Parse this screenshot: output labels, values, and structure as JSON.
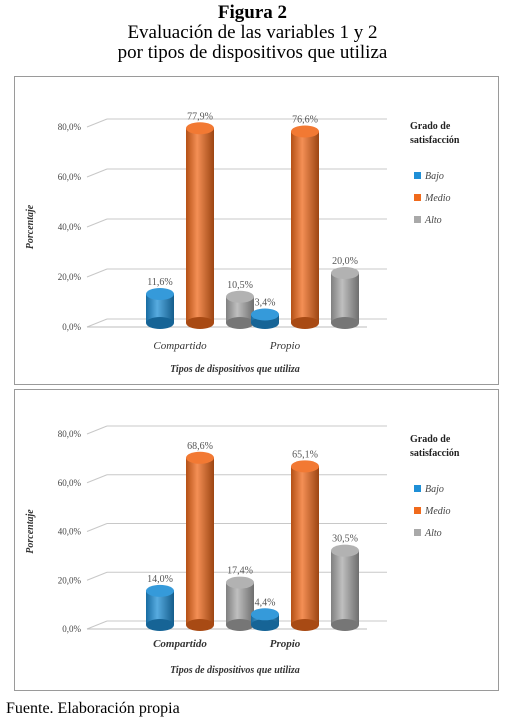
{
  "figure": {
    "title": "Figura 2",
    "subtitle_line1": "Evaluación de las variables 1 y 2",
    "subtitle_line2": "por tipos de dispositivos que utiliza"
  },
  "footer": "Fuente. Elaboración propia",
  "chart_data": [
    {
      "type": "bar",
      "categories": [
        "Compartido",
        "Propio"
      ],
      "series": [
        {
          "name": "Bajo",
          "color": "#1f8fd6",
          "values": [
            11.6,
            3.4
          ],
          "labels": [
            "11,6%",
            "3,4%"
          ]
        },
        {
          "name": "Medio",
          "color": "#f06a1c",
          "values": [
            77.9,
            76.6
          ],
          "labels": [
            "77,9%",
            "76,6%"
          ]
        },
        {
          "name": "Alto",
          "color": "#a9a9a9",
          "values": [
            10.5,
            20.0
          ],
          "labels": [
            "10,5%",
            "20,0%"
          ]
        }
      ],
      "ylim": [
        0,
        80
      ],
      "yticks": [
        0,
        20,
        40,
        60,
        80
      ],
      "ytick_labels": [
        "0,0%",
        "20,0%",
        "40,0%",
        "60,0%",
        "80,0%"
      ],
      "xlabel": "Tipos de dispositivos que utiliza",
      "ylabel": "Porcentaje",
      "legend_title": [
        "Grado de",
        "satisfacción"
      ],
      "legend_position": "right",
      "category_style": "italic",
      "grid": true
    },
    {
      "type": "bar",
      "categories": [
        "Compartido",
        "Propio"
      ],
      "series": [
        {
          "name": "Bajo",
          "color": "#1f8fd6",
          "values": [
            14.0,
            4.4
          ],
          "labels": [
            "14,0%",
            "4,4%"
          ]
        },
        {
          "name": "Medio",
          "color": "#f06a1c",
          "values": [
            68.6,
            65.1
          ],
          "labels": [
            "68,6%",
            "65,1%"
          ]
        },
        {
          "name": "Alto",
          "color": "#a9a9a9",
          "values": [
            17.4,
            30.5
          ],
          "labels": [
            "17,4%",
            "30,5%"
          ]
        }
      ],
      "ylim": [
        0,
        80
      ],
      "yticks": [
        0,
        20,
        40,
        60,
        80
      ],
      "ytick_labels": [
        "0,0%",
        "20,0%",
        "40,0%",
        "60,0%",
        "80,0%"
      ],
      "xlabel": "Tipos de dispositivos que utiliza",
      "ylabel": "Porcentaje",
      "legend_title": [
        "Grado de",
        "satisfacción"
      ],
      "legend_position": "right",
      "category_style": "bold-italic",
      "grid": true
    }
  ]
}
